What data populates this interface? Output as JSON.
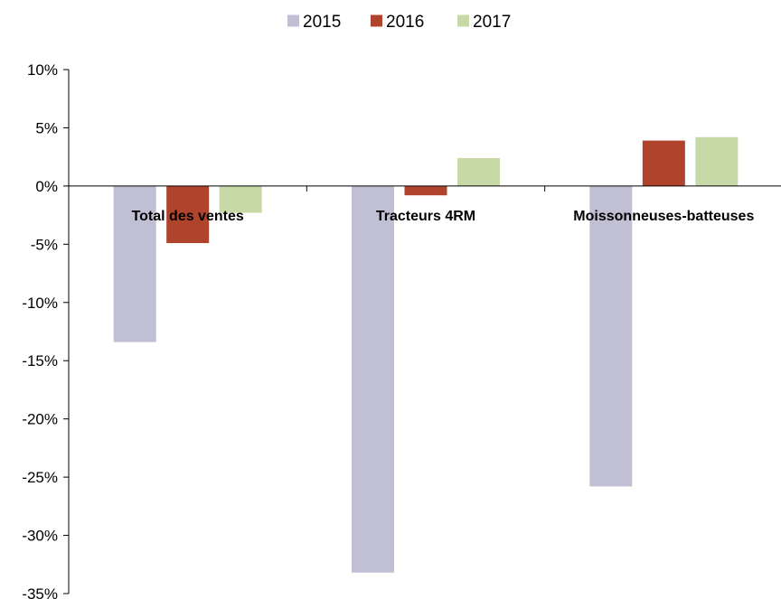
{
  "chart_data": {
    "type": "bar",
    "title": "",
    "xlabel": "",
    "ylabel": "",
    "categories": [
      "Total des ventes",
      "Tracteurs 4RM",
      "Moissonneuses-batteuses"
    ],
    "series": [
      {
        "name": "2015",
        "color": "#c0bfd4",
        "values": [
          -13.4,
          -33.2,
          -25.8
        ]
      },
      {
        "name": "2016",
        "color": "#b0432c",
        "values": [
          -4.9,
          -0.8,
          3.9
        ]
      },
      {
        "name": "2017",
        "color": "#c7d9a7",
        "values": [
          -2.3,
          2.4,
          4.2
        ]
      }
    ],
    "ylim": [
      -35,
      10
    ],
    "y_ticks": [
      10,
      5,
      0,
      -5,
      -10,
      -15,
      -20,
      -25,
      -30,
      -35
    ],
    "y_tick_labels": [
      "10%",
      "5%",
      "0%",
      "-5%",
      "-10%",
      "-15%",
      "-20%",
      "-25%",
      "-30%",
      "-35%"
    ],
    "legend_position": "top",
    "grid": false
  }
}
